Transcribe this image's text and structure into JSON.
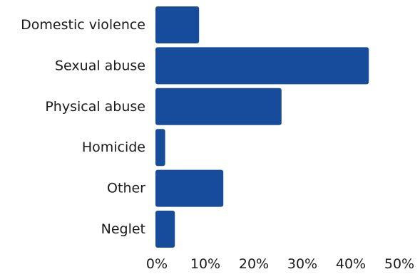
{
  "chart_data": {
    "type": "bar",
    "orientation": "horizontal",
    "categories": [
      "Domestic violence",
      "Sexual abuse",
      "Physical abuse",
      "Homicide",
      "Other",
      "Neglet"
    ],
    "values": [
      9,
      44,
      26,
      2,
      14,
      4
    ],
    "unit": "%",
    "xlim": [
      0,
      50
    ],
    "xticks": [
      0,
      10,
      20,
      30,
      40,
      50
    ],
    "xtick_labels": [
      "0%",
      "10%",
      "20%",
      "30%",
      "40%",
      "50%"
    ],
    "bar_color": "#174b9b",
    "title": "",
    "xlabel": "",
    "ylabel": "",
    "grid": false,
    "legend": "none"
  }
}
